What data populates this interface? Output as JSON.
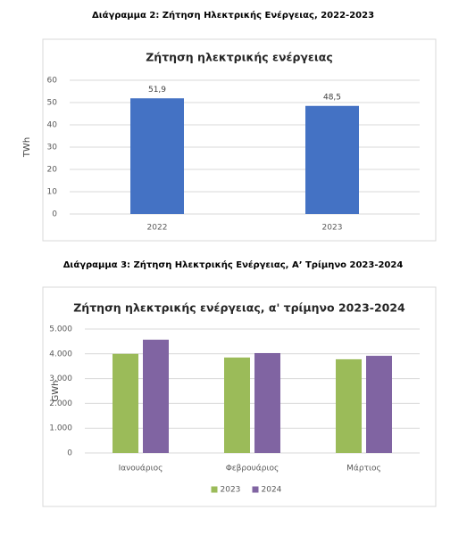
{
  "chart_data": [
    {
      "type": "bar",
      "caption": "Διάγραμμα 2: Ζήτηση Ηλεκτρικής Ενέργειας, 2022-2023",
      "title": "Ζήτηση ηλεκτρικής ενέργειας",
      "ylabel": "TWh",
      "categories": [
        "2022",
        "2023"
      ],
      "values": [
        51.9,
        48.5
      ],
      "value_labels": [
        "51,9",
        "48,5"
      ],
      "color": "#4472c4",
      "ylim": [
        0,
        60
      ],
      "yticks": [
        0,
        10,
        20,
        30,
        40,
        50,
        60
      ],
      "grid": true
    },
    {
      "type": "bar",
      "caption": "Διάγραμμα 3: Ζήτηση Ηλεκτρικής Ενέργειας, Α’ Τρίμηνο 2023-2024",
      "title": "Ζήτηση ηλεκτρικής ενέργειας, α' τρίμηνο 2023-2024",
      "ylabel": "GWh",
      "categories": [
        "Ιανουάριος",
        "Φεβρουάριος",
        "Μάρτιος"
      ],
      "series": [
        {
          "name": "2023",
          "color": "#9bbb59",
          "values": [
            4000,
            3850,
            3780
          ]
        },
        {
          "name": "2024",
          "color": "#8064a2",
          "values": [
            4570,
            4030,
            3920
          ]
        }
      ],
      "ylim": [
        0,
        5000
      ],
      "yticks": [
        0,
        {
          "value": 1000,
          "label": "1.000"
        },
        {
          "value": 2000,
          "label": "2.000"
        },
        {
          "value": 3000,
          "label": "3.000"
        },
        {
          "value": 4000,
          "label": "4.000"
        },
        {
          "value": 5000,
          "label": "5.000"
        }
      ],
      "grid": true,
      "legend": "bottom"
    }
  ]
}
